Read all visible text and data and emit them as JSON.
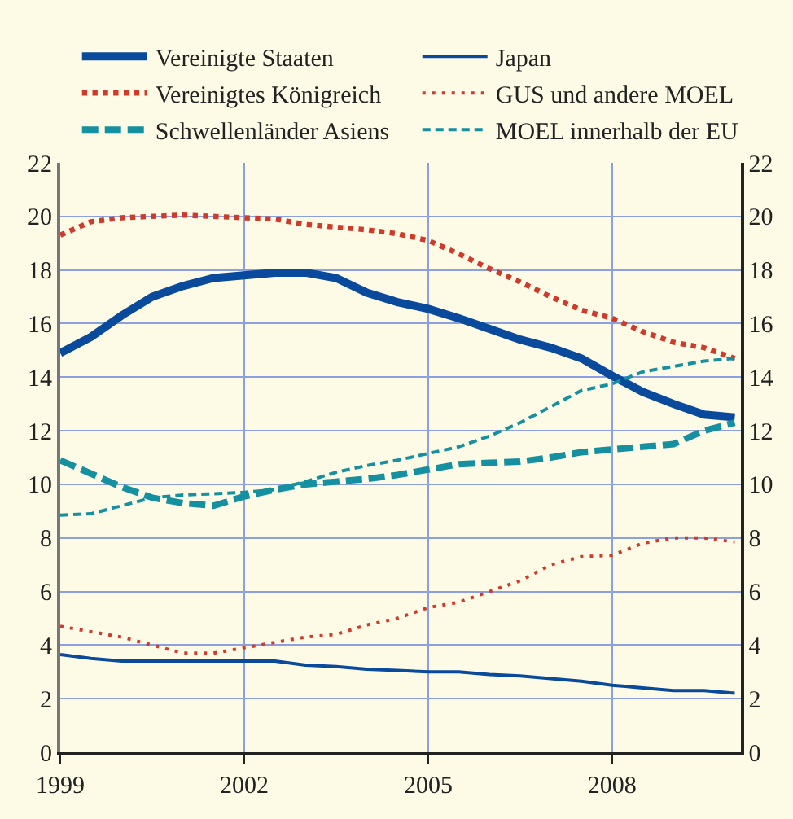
{
  "chart_data": {
    "type": "line",
    "x": [
      1999,
      1999.5,
      2000,
      2000.5,
      2001,
      2001.5,
      2002,
      2002.5,
      2003,
      2003.5,
      2004,
      2004.5,
      2005,
      2005.5,
      2006,
      2006.5,
      2007,
      2007.5,
      2008,
      2008.5,
      2009,
      2009.5,
      2010
    ],
    "series": [
      {
        "name": "Vereinigte Staaten",
        "color": "#0a4a9c",
        "line_style": "solid",
        "values": [
          14.9,
          15.5,
          16.3,
          17.0,
          17.4,
          17.7,
          17.8,
          17.9,
          17.9,
          17.7,
          17.15,
          16.8,
          16.55,
          16.2,
          15.8,
          15.4,
          15.1,
          14.7,
          14.05,
          13.45,
          13.0,
          12.6,
          12.5
        ]
      },
      {
        "name": "Japan",
        "color": "#0a4a9c",
        "line_style": "solid",
        "values": [
          3.65,
          3.5,
          3.4,
          3.4,
          3.4,
          3.4,
          3.4,
          3.4,
          3.25,
          3.2,
          3.1,
          3.05,
          3.0,
          3.0,
          2.9,
          2.85,
          2.75,
          2.65,
          2.5,
          2.4,
          2.3,
          2.3,
          2.2
        ]
      },
      {
        "name": "Vereinigtes Königreich",
        "color": "#d03a2a",
        "line_style": "dotted",
        "values": [
          19.3,
          19.8,
          19.95,
          20.0,
          20.05,
          20.0,
          19.95,
          19.9,
          19.7,
          19.6,
          19.5,
          19.35,
          19.1,
          18.6,
          18.05,
          17.55,
          17.0,
          16.5,
          16.2,
          15.7,
          15.3,
          15.1,
          14.7
        ]
      },
      {
        "name": "GUS und andere MOEL",
        "color": "#d03a2a",
        "line_style": "dotted",
        "values": [
          4.7,
          4.5,
          4.3,
          4.0,
          3.7,
          3.7,
          3.9,
          4.1,
          4.3,
          4.4,
          4.75,
          5.0,
          5.4,
          5.6,
          6.0,
          6.4,
          7.0,
          7.3,
          7.35,
          7.8,
          8.0,
          8.0,
          7.85
        ]
      },
      {
        "name": "Schwellenländer Asiens",
        "color": "#1590a0",
        "line_style": "dashed",
        "values": [
          10.9,
          10.4,
          9.9,
          9.5,
          9.3,
          9.2,
          9.55,
          9.8,
          10.0,
          10.1,
          10.2,
          10.35,
          10.55,
          10.75,
          10.8,
          10.85,
          11.0,
          11.2,
          11.3,
          11.4,
          11.5,
          12.0,
          12.3
        ]
      },
      {
        "name": "MOEL innerhalb der EU",
        "color": "#1590a0",
        "line_style": "dashed",
        "values": [
          8.85,
          8.9,
          9.2,
          9.5,
          9.6,
          9.65,
          9.7,
          9.8,
          10.1,
          10.45,
          10.7,
          10.9,
          11.15,
          11.4,
          11.8,
          12.3,
          12.9,
          13.5,
          13.75,
          14.2,
          14.4,
          14.6,
          14.7
        ]
      }
    ],
    "xlim": [
      1999,
      2010.1
    ],
    "xticks": [
      1999,
      2002,
      2005,
      2008
    ],
    "ylim": [
      0,
      22
    ],
    "yticks": [
      0,
      2,
      4,
      6,
      8,
      10,
      12,
      14,
      16,
      18,
      20,
      22
    ],
    "y2lim": [
      0,
      22
    ],
    "y2ticks": [
      0,
      2,
      4,
      6,
      8,
      10,
      12,
      14,
      16,
      18,
      20,
      22
    ],
    "grid": true,
    "legend": "top",
    "marker": "none"
  }
}
